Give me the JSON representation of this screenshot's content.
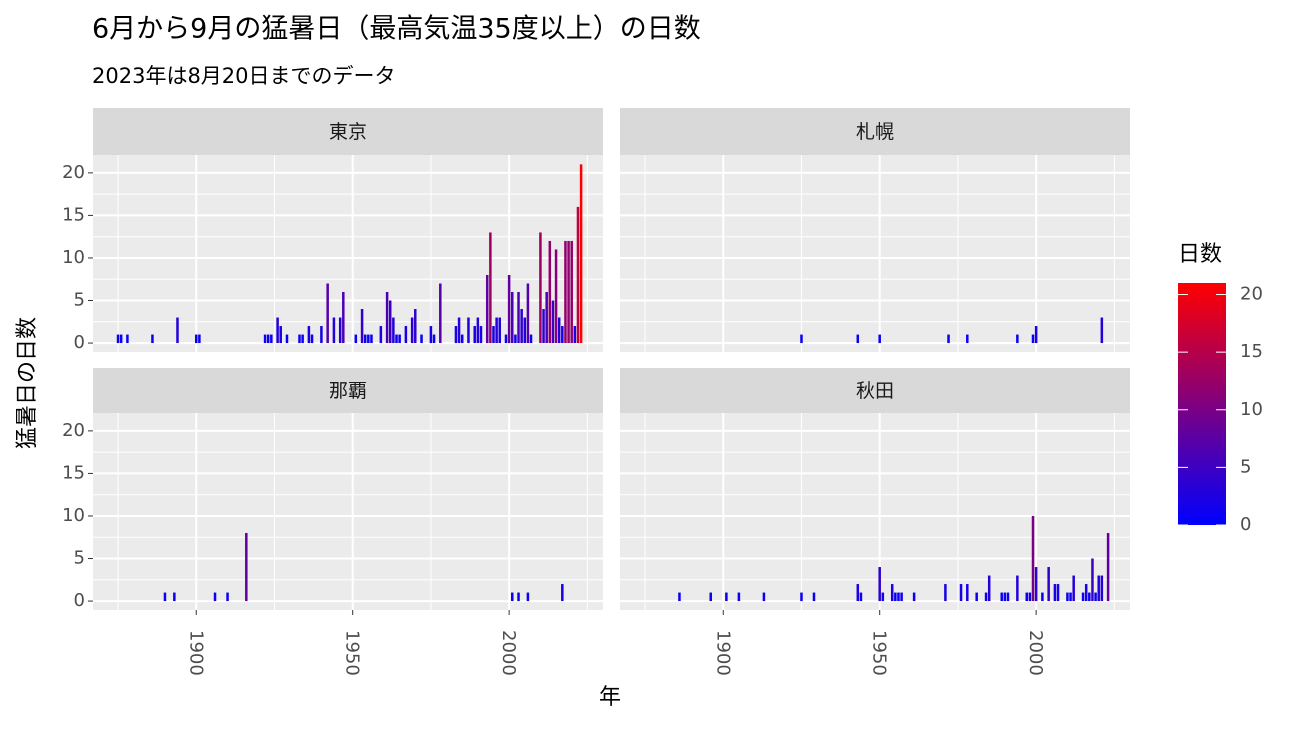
{
  "chart_data": {
    "type": "bar",
    "title": "6月から9月の猛暑日（最高気温35度以上）の日数",
    "subtitle": "2023年は8月20日までのデータ",
    "x_label": "年",
    "y_label": "猛暑日の日数",
    "xlim": [
      1867,
      2030
    ],
    "xticks": [
      1900,
      1950,
      2000
    ],
    "ylim": [
      -1.05,
      22.1
    ],
    "yticks": [
      0,
      5,
      10,
      15,
      20
    ],
    "grid": true,
    "color_scale": {
      "title": "日数",
      "low": "#0000ff",
      "high": "#ff0000",
      "limits": [
        0,
        21
      ],
      "ticks": [
        0,
        5,
        10,
        15,
        20
      ]
    },
    "facets": [
      {
        "name": "東京",
        "x": [
          1875,
          1876,
          1878,
          1886,
          1894,
          1900,
          1901,
          1922,
          1923,
          1924,
          1926,
          1927,
          1929,
          1933,
          1934,
          1936,
          1937,
          1940,
          1942,
          1944,
          1946,
          1947,
          1951,
          1953,
          1954,
          1955,
          1956,
          1959,
          1961,
          1962,
          1963,
          1964,
          1965,
          1967,
          1969,
          1970,
          1972,
          1975,
          1976,
          1978,
          1983,
          1984,
          1985,
          1987,
          1989,
          1990,
          1991,
          1993,
          1994,
          1995,
          1996,
          1997,
          1999,
          2000,
          2001,
          2002,
          2003,
          2004,
          2005,
          2006,
          2007,
          2010,
          2011,
          2012,
          2013,
          2014,
          2015,
          2016,
          2017,
          2018,
          2019,
          2020,
          2021,
          2022,
          2023
        ],
        "values": [
          1,
          1,
          1,
          1,
          3,
          1,
          1,
          1,
          1,
          1,
          3,
          2,
          1,
          1,
          1,
          2,
          1,
          2,
          7,
          3,
          3,
          6,
          1,
          4,
          1,
          1,
          1,
          2,
          6,
          5,
          3,
          1,
          1,
          2,
          3,
          4,
          1,
          2,
          1,
          7,
          2,
          3,
          1,
          3,
          2,
          3,
          2,
          8,
          13,
          2,
          3,
          3,
          1,
          8,
          6,
          1,
          6,
          4,
          3,
          7,
          1,
          13,
          4,
          6,
          12,
          5,
          11,
          3,
          2,
          12,
          12,
          12,
          2,
          16,
          21
        ]
      },
      {
        "name": "札幌",
        "x": [
          1925,
          1943,
          1950,
          1972,
          1978,
          1994,
          1999,
          2000,
          2021
        ],
        "values": [
          1,
          1,
          1,
          1,
          1,
          1,
          1,
          2,
          3
        ]
      },
      {
        "name": "那覇",
        "x": [
          1890,
          1893,
          1906,
          1910,
          1916,
          2001,
          2003,
          2006,
          2017
        ],
        "values": [
          1,
          1,
          1,
          1,
          8,
          1,
          1,
          1,
          2
        ]
      },
      {
        "name": "秋田",
        "x": [
          1886,
          1896,
          1901,
          1905,
          1913,
          1925,
          1929,
          1943,
          1944,
          1950,
          1951,
          1954,
          1955,
          1956,
          1957,
          1961,
          1971,
          1976,
          1978,
          1981,
          1984,
          1985,
          1989,
          1990,
          1991,
          1994,
          1997,
          1998,
          1999,
          2000,
          2002,
          2004,
          2006,
          2007,
          2010,
          2011,
          2012,
          2015,
          2016,
          2017,
          2018,
          2019,
          2020,
          2021,
          2023
        ],
        "values": [
          1,
          1,
          1,
          1,
          1,
          1,
          1,
          2,
          1,
          4,
          1,
          2,
          1,
          1,
          1,
          1,
          2,
          2,
          2,
          1,
          1,
          3,
          1,
          1,
          1,
          3,
          1,
          1,
          10,
          4,
          1,
          4,
          2,
          2,
          1,
          1,
          3,
          1,
          2,
          1,
          5,
          1,
          3,
          3,
          8
        ]
      }
    ]
  }
}
